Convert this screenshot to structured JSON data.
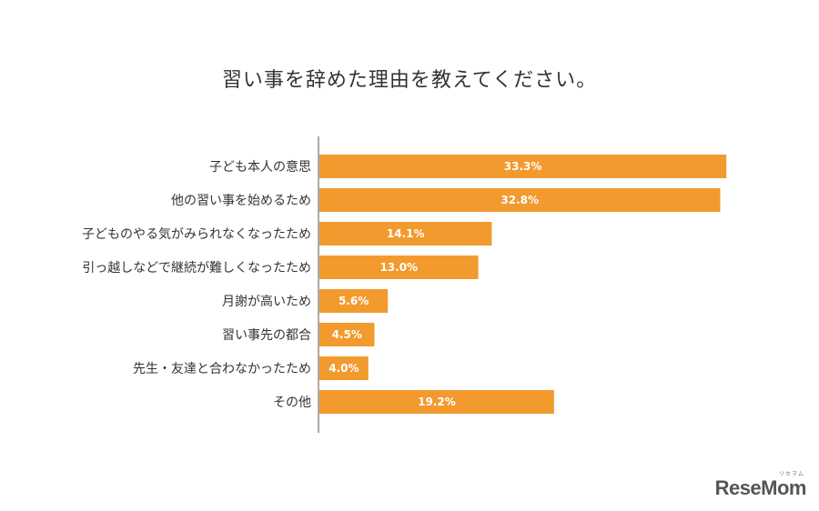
{
  "chart_data": {
    "type": "bar",
    "orientation": "horizontal",
    "title": "習い事を辞めた理由を教えてください。",
    "categories": [
      "子ども本人の意思",
      "他の習い事を始めるため",
      "子どものやる気がみられなくなったため",
      "引っ越しなどで継続が難しくなったため",
      "月謝が高いため",
      "習い事先の都合",
      "先生・友達と合わなかったため",
      "その他"
    ],
    "values": [
      33.3,
      32.8,
      14.1,
      13.0,
      5.6,
      4.5,
      4.0,
      19.2
    ],
    "value_labels": [
      "33.3%",
      "32.8%",
      "14.1%",
      "13.0%",
      "5.6%",
      "4.5%",
      "4.0%",
      "19.2%"
    ],
    "xlim": [
      0,
      35
    ],
    "grid": false,
    "bar_color": "#f29a2e",
    "label_color": "#ffffff"
  },
  "brand": {
    "logo_text": "ReseMom",
    "logo_sub": "リセマム"
  }
}
